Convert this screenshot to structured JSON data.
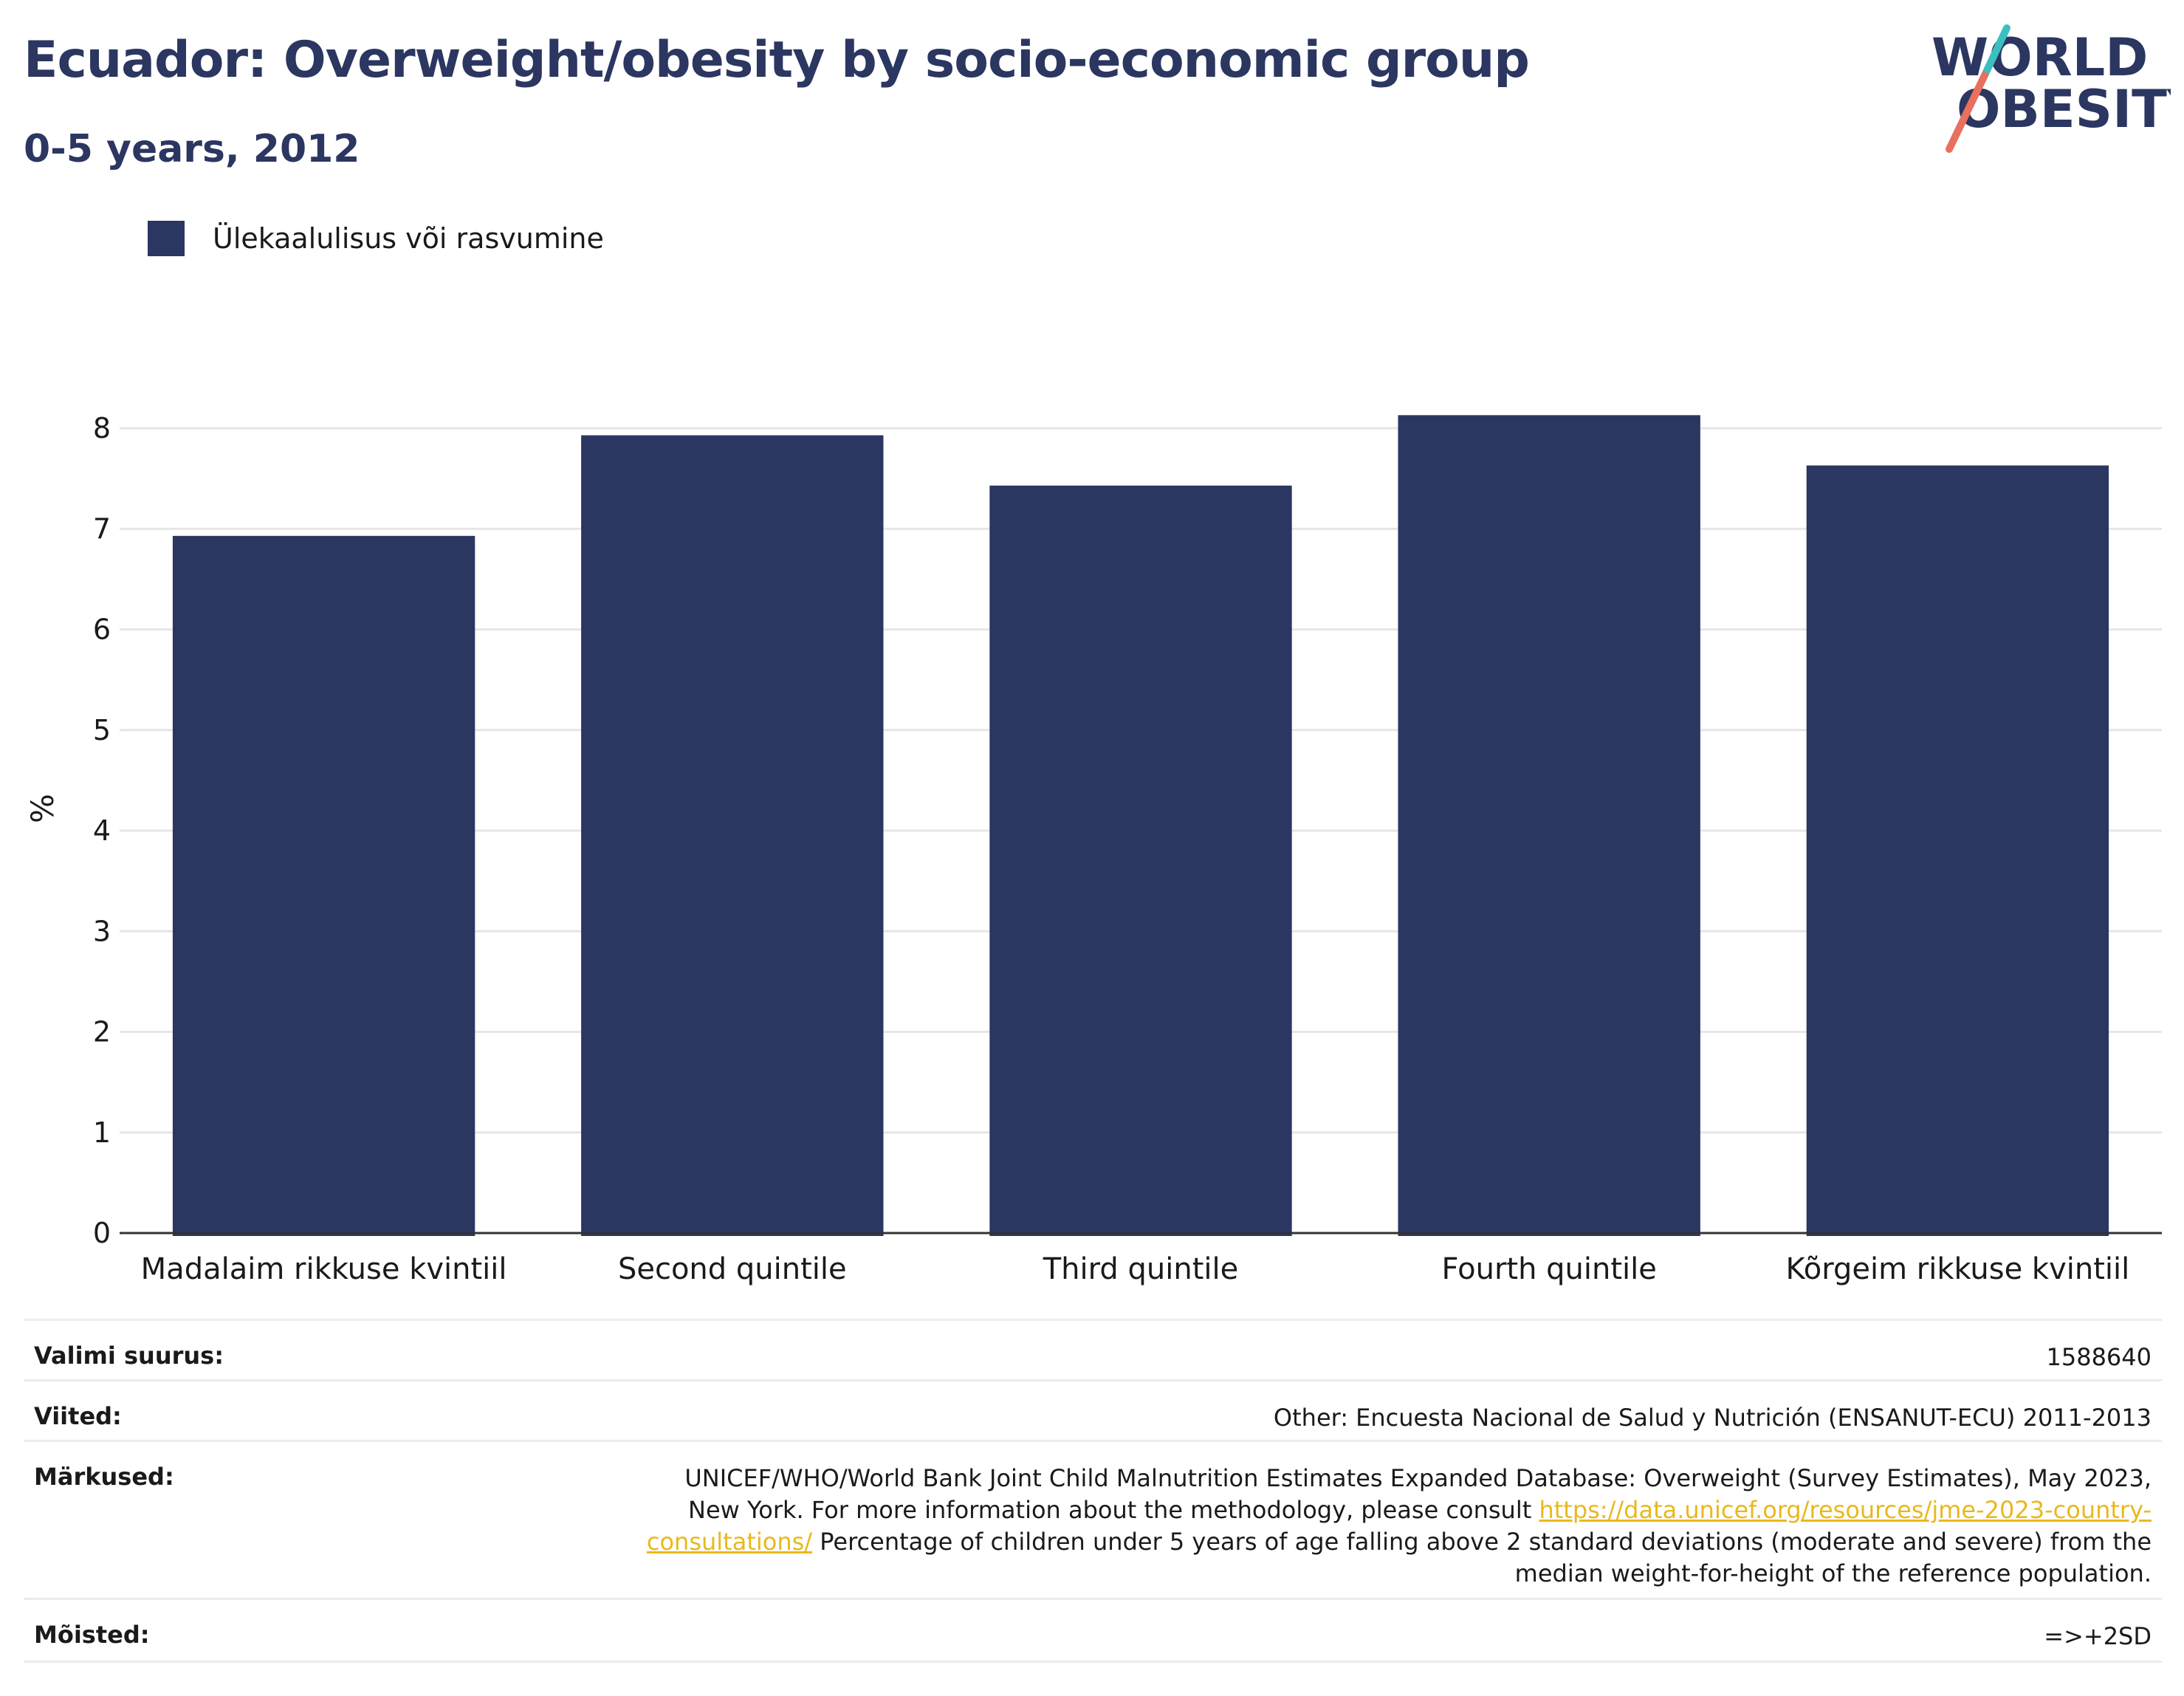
{
  "header": {
    "title": "Ecuador: Overweight/obesity by socio-economic group",
    "subtitle": "0-5 years, 2012"
  },
  "logo": {
    "line1": "WORLD",
    "line2": "OBESITY",
    "colors": {
      "text": "#2b3661",
      "slash_teal": "#3bbfc1",
      "slash_coral": "#e8705e"
    }
  },
  "colors": {
    "bar": "#2b3661",
    "grid": "#e6e6e6",
    "axis": "#333333",
    "link": "#e9b91c"
  },
  "chart_data": {
    "type": "bar",
    "categories": [
      "Madalaim rikkuse kvintiil",
      "Second quintile",
      "Third quintile",
      "Fourth quintile",
      "Kõrgeim rikkuse kvintiil"
    ],
    "series": [
      {
        "name": "Ülekaalulisus või rasvumine",
        "values": [
          6.93,
          7.93,
          7.43,
          8.13,
          7.63
        ]
      }
    ],
    "ylabel": "%",
    "xlabel": "",
    "ylim": [
      0,
      8.5
    ],
    "yticks": [
      "0",
      "1",
      "2",
      "3",
      "4",
      "5",
      "6",
      "7",
      "8"
    ],
    "grid": true,
    "legend": "top-left"
  },
  "meta": {
    "sample_size": {
      "label": "Valimi suurus:",
      "value": "1588640"
    },
    "references": {
      "label": "Viited:",
      "value": "Other: Encuesta Nacional de Salud y Nutrición (ENSANUT-ECU) 2011-2013"
    },
    "notes": {
      "label": "Märkused:",
      "text_before_link": "UNICEF/WHO/World Bank Joint Child Malnutrition Estimates Expanded Database: Overweight (Survey Estimates), May 2023, New York. For more information about the methodology, please consult ",
      "link": "https://data.unicef.org/resources/jme-2023-country-consultations/",
      "text_after_link": " Percentage of children under 5 years of age falling above 2 standard deviations (moderate and severe) from the median weight-for-height of the reference population."
    },
    "definitions": {
      "label": "Mõisted:",
      "value": "=>+2SD"
    }
  }
}
